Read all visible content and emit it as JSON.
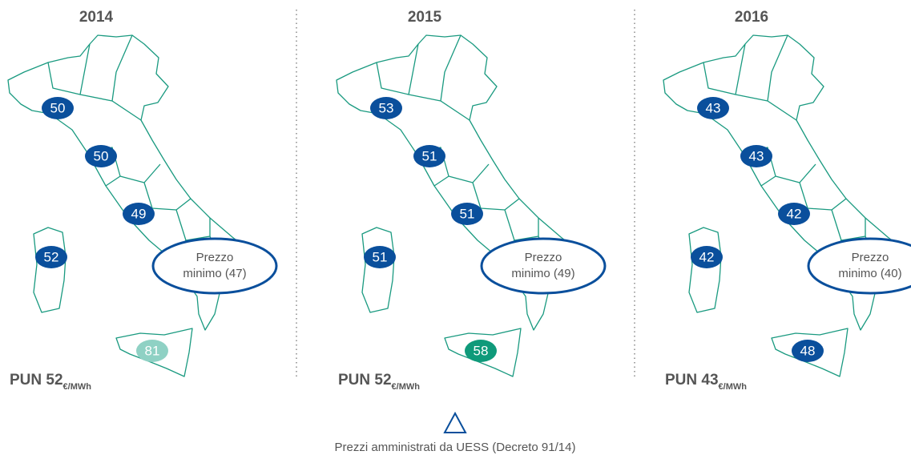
{
  "panels": [
    {
      "year": "2014",
      "badges": [
        50,
        50,
        49,
        52,
        81
      ],
      "min_label": [
        "Prezzo",
        "minimo (47)"
      ],
      "pun": "PUN 52",
      "pun_unit": "€/MWh"
    },
    {
      "year": "2015",
      "badges": [
        53,
        51,
        51,
        51,
        58
      ],
      "min_label": [
        "Prezzo",
        "minimo (49)"
      ],
      "pun": "PUN 52",
      "pun_unit": "€/MWh"
    },
    {
      "year": "2016",
      "badges": [
        43,
        43,
        42,
        42,
        48
      ],
      "min_label": [
        "Prezzo",
        "minimo (40)"
      ],
      "pun": "PUN 43",
      "pun_unit": "€/MWh"
    }
  ],
  "footer": "Prezzi amministrati da UESS (Decreto 91/14)"
}
